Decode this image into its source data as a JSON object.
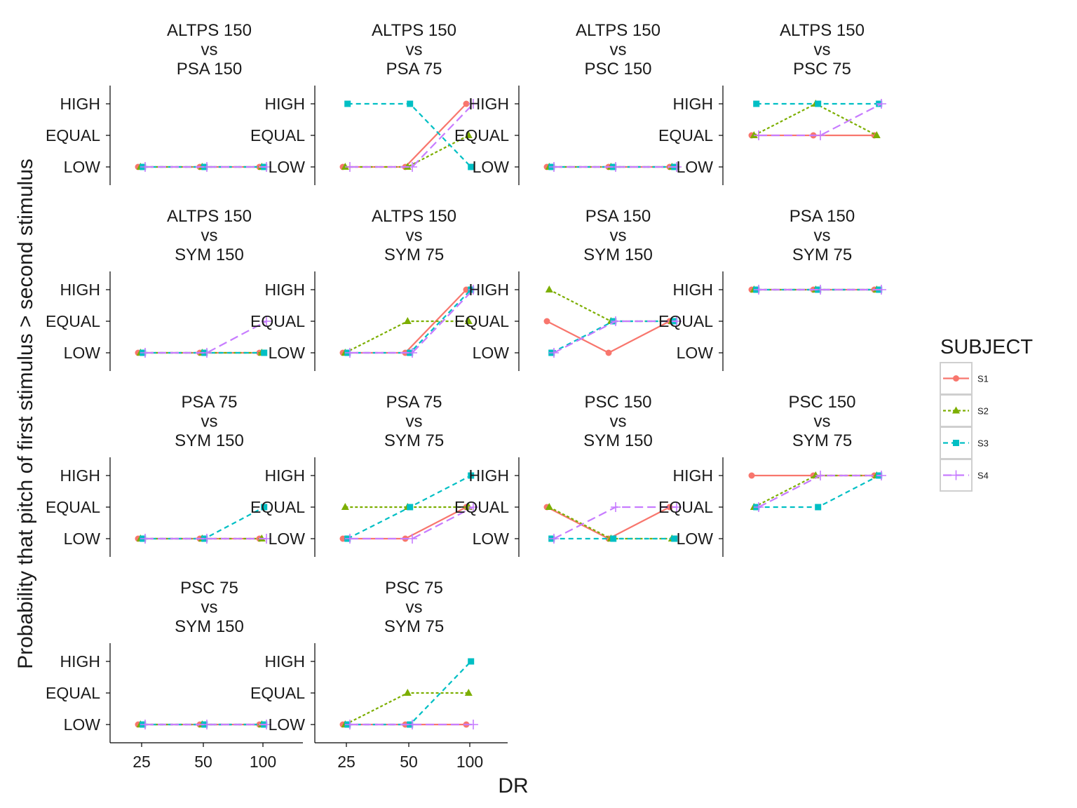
{
  "chart_data": {
    "type": "line",
    "xlabel": "DR",
    "ylabel": "Probability that pitch of first stimulus > second stimulus",
    "x_ticks": [
      "25",
      "50",
      "100"
    ],
    "y_levels": [
      "LOW",
      "EQUAL",
      "HIGH"
    ],
    "legend": {
      "title": "SUBJECT",
      "position": "right"
    },
    "series_styles": [
      {
        "name": "S1",
        "color": "#F8766D",
        "line": "solid",
        "marker": "circle"
      },
      {
        "name": "S2",
        "color": "#7CAE00",
        "line": "dotted",
        "marker": "triangle"
      },
      {
        "name": "S3",
        "color": "#00BFC4",
        "line": "dashed",
        "marker": "square"
      },
      {
        "name": "S4",
        "color": "#C77CFF",
        "line": "longdash",
        "marker": "plus"
      }
    ],
    "panels": [
      {
        "title": [
          "ALTPS 150",
          "vs",
          "PSA 150"
        ],
        "series": {
          "S1": [
            "LOW",
            "LOW",
            "LOW"
          ],
          "S2": [
            "LOW",
            "LOW",
            "LOW"
          ],
          "S3": [
            "LOW",
            "LOW",
            "LOW"
          ],
          "S4": [
            "LOW",
            "LOW",
            "LOW"
          ]
        }
      },
      {
        "title": [
          "ALTPS 150",
          "vs",
          "PSA 75"
        ],
        "series": {
          "S1": [
            "LOW",
            "LOW",
            "HIGH"
          ],
          "S2": [
            "LOW",
            "LOW",
            "EQUAL"
          ],
          "S3": [
            "HIGH",
            "HIGH",
            "LOW"
          ],
          "S4": [
            "LOW",
            "LOW",
            "HIGH"
          ]
        }
      },
      {
        "title": [
          "ALTPS 150",
          "vs",
          "PSC 150"
        ],
        "series": {
          "S1": [
            "LOW",
            "LOW",
            "LOW"
          ],
          "S2": [
            "LOW",
            "LOW",
            "LOW"
          ],
          "S3": [
            "LOW",
            "LOW",
            "LOW"
          ],
          "S4": [
            "LOW",
            "LOW",
            "LOW"
          ]
        }
      },
      {
        "title": [
          "ALTPS 150",
          "vs",
          "PSC 75"
        ],
        "series": {
          "S1": [
            "EQUAL",
            "EQUAL",
            "EQUAL"
          ],
          "S2": [
            "EQUAL",
            "HIGH",
            "EQUAL"
          ],
          "S3": [
            "HIGH",
            "HIGH",
            "HIGH"
          ],
          "S4": [
            "EQUAL",
            "EQUAL",
            "HIGH"
          ]
        }
      },
      {
        "title": [
          "ALTPS 150",
          "vs",
          "SYM 150"
        ],
        "series": {
          "S1": [
            "LOW",
            "LOW",
            "LOW"
          ],
          "S2": [
            "LOW",
            "LOW",
            "LOW"
          ],
          "S3": [
            "LOW",
            "LOW",
            "LOW"
          ],
          "S4": [
            "LOW",
            "LOW",
            "EQUAL"
          ]
        }
      },
      {
        "title": [
          "ALTPS 150",
          "vs",
          "SYM 75"
        ],
        "series": {
          "S1": [
            "LOW",
            "LOW",
            "HIGH"
          ],
          "S2": [
            "LOW",
            "EQUAL",
            "EQUAL"
          ],
          "S3": [
            "LOW",
            "LOW",
            "HIGH"
          ],
          "S4": [
            "LOW",
            "LOW",
            "HIGH"
          ]
        }
      },
      {
        "title": [
          "PSA 150",
          "vs",
          "SYM 150"
        ],
        "series": {
          "S1": [
            "EQUAL",
            "LOW",
            "EQUAL"
          ],
          "S2": [
            "HIGH",
            "EQUAL",
            "EQUAL"
          ],
          "S3": [
            "LOW",
            "EQUAL",
            "EQUAL"
          ],
          "S4": [
            "LOW",
            "EQUAL",
            "EQUAL"
          ]
        }
      },
      {
        "title": [
          "PSA 150",
          "vs",
          "SYM 75"
        ],
        "series": {
          "S1": [
            "HIGH",
            "HIGH",
            "HIGH"
          ],
          "S2": [
            "HIGH",
            "HIGH",
            "HIGH"
          ],
          "S3": [
            "HIGH",
            "HIGH",
            "HIGH"
          ],
          "S4": [
            "HIGH",
            "HIGH",
            "HIGH"
          ]
        }
      },
      {
        "title": [
          "PSA 75",
          "vs",
          "SYM 150"
        ],
        "series": {
          "S1": [
            "LOW",
            "LOW",
            "LOW"
          ],
          "S2": [
            "LOW",
            "LOW",
            "LOW"
          ],
          "S3": [
            "LOW",
            "LOW",
            "EQUAL"
          ],
          "S4": [
            "LOW",
            "LOW",
            "LOW"
          ]
        }
      },
      {
        "title": [
          "PSA 75",
          "vs",
          "SYM 75"
        ],
        "series": {
          "S1": [
            "LOW",
            "LOW",
            "EQUAL"
          ],
          "S2": [
            "EQUAL",
            "EQUAL",
            "EQUAL"
          ],
          "S3": [
            "LOW",
            "EQUAL",
            "HIGH"
          ],
          "S4": [
            "LOW",
            "LOW",
            "EQUAL"
          ]
        }
      },
      {
        "title": [
          "PSC 150",
          "vs",
          "SYM 150"
        ],
        "series": {
          "S1": [
            "EQUAL",
            "LOW",
            "EQUAL"
          ],
          "S2": [
            "EQUAL",
            "LOW",
            "LOW"
          ],
          "S3": [
            "LOW",
            "LOW",
            "LOW"
          ],
          "S4": [
            "LOW",
            "EQUAL",
            "EQUAL"
          ]
        }
      },
      {
        "title": [
          "PSC 150",
          "vs",
          "SYM 75"
        ],
        "series": {
          "S1": [
            "HIGH",
            "HIGH",
            "HIGH"
          ],
          "S2": [
            "EQUAL",
            "HIGH",
            "HIGH"
          ],
          "S3": [
            "EQUAL",
            "EQUAL",
            "HIGH"
          ],
          "S4": [
            "EQUAL",
            "HIGH",
            "HIGH"
          ]
        }
      },
      {
        "title": [
          "PSC 75",
          "vs",
          "SYM 150"
        ],
        "series": {
          "S1": [
            "LOW",
            "LOW",
            "LOW"
          ],
          "S2": [
            "LOW",
            "LOW",
            "LOW"
          ],
          "S3": [
            "LOW",
            "LOW",
            "LOW"
          ],
          "S4": [
            "LOW",
            "LOW",
            "LOW"
          ]
        }
      },
      {
        "title": [
          "PSC 75",
          "vs",
          "SYM 75"
        ],
        "series": {
          "S1": [
            "LOW",
            "LOW",
            "LOW"
          ],
          "S2": [
            "LOW",
            "EQUAL",
            "EQUAL"
          ],
          "S3": [
            "LOW",
            "LOW",
            "HIGH"
          ],
          "S4": [
            "LOW",
            "LOW",
            "LOW"
          ]
        }
      }
    ]
  }
}
